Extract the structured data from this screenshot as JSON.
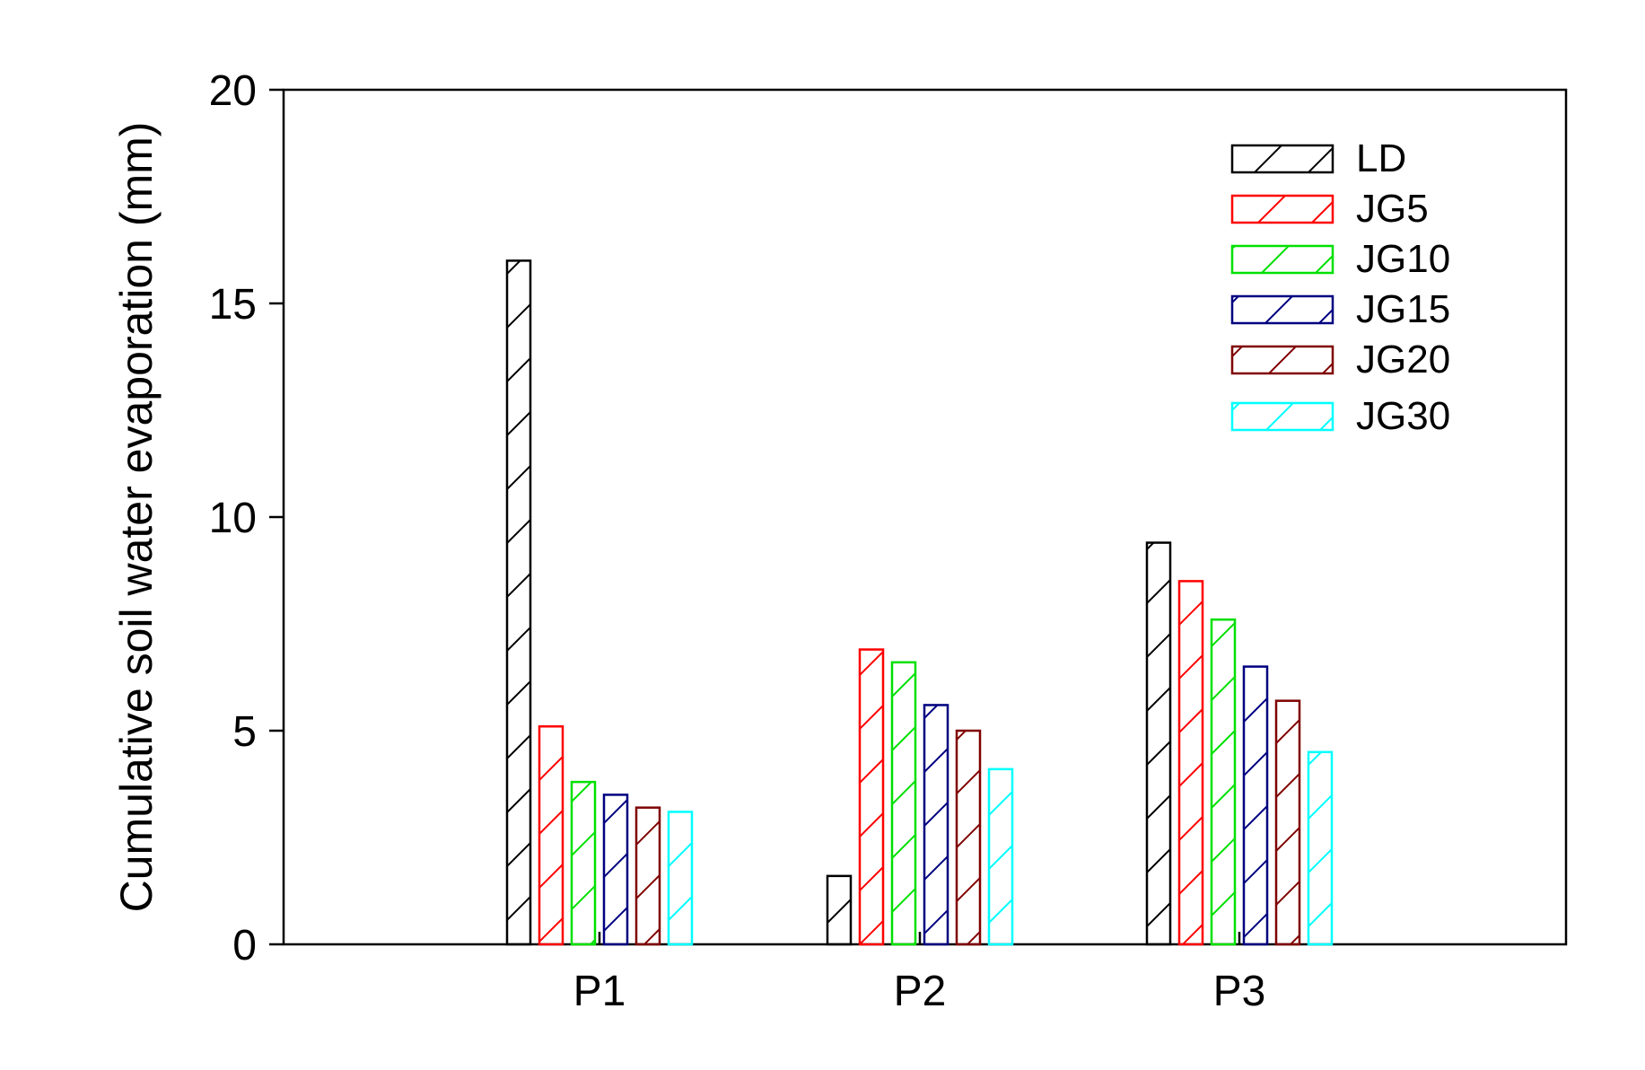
{
  "chart_data": {
    "type": "bar",
    "title": "",
    "xlabel": "",
    "ylabel": "Cumulative soil water evaporation (mm)",
    "categories": [
      "P1",
      "P2",
      "P3"
    ],
    "ylim": [
      0,
      20
    ],
    "yticks": [
      0,
      5,
      10,
      15,
      20
    ],
    "grid": false,
    "legend_position": "top-right",
    "bar_fill": "hatched",
    "series": [
      {
        "name": "LD",
        "color": "#000000",
        "values": [
          16.0,
          1.6,
          9.4
        ]
      },
      {
        "name": "JG5",
        "color": "#ff0000",
        "values": [
          5.1,
          6.9,
          8.5
        ]
      },
      {
        "name": "JG10",
        "color": "#00e000",
        "values": [
          3.8,
          6.6,
          7.6
        ]
      },
      {
        "name": "JG15",
        "color": "#000080",
        "values": [
          3.5,
          5.6,
          6.5
        ]
      },
      {
        "name": "JG20",
        "color": "#800000",
        "values": [
          3.2,
          5.0,
          5.7
        ]
      },
      {
        "name": "JG30",
        "color": "#00ffff",
        "values": [
          3.1,
          4.1,
          4.5
        ]
      }
    ]
  }
}
